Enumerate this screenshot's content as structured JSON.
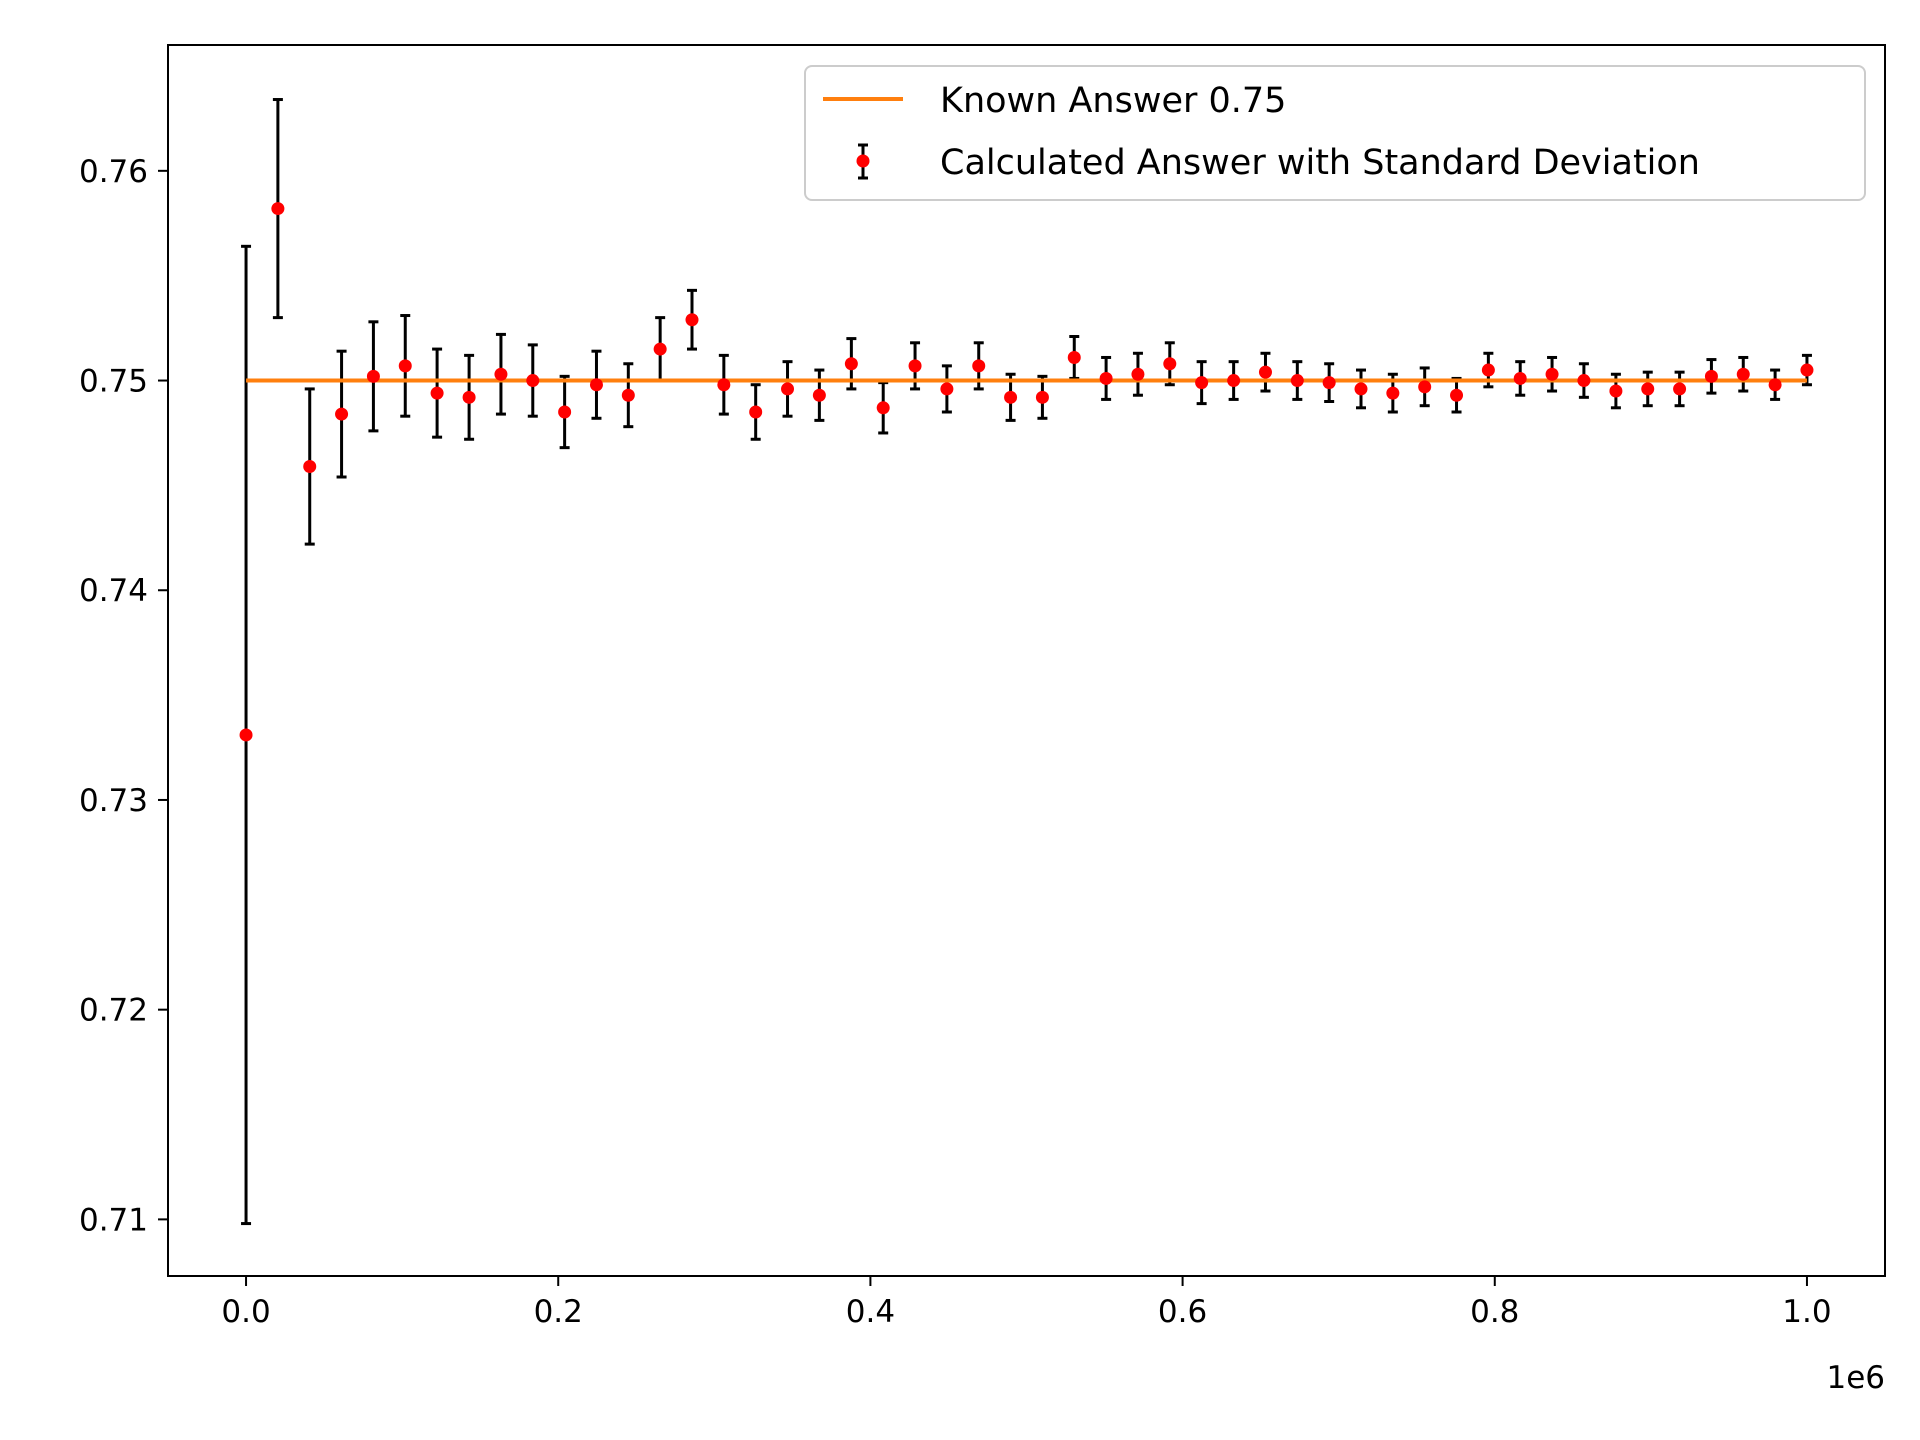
{
  "chart_data": {
    "type": "scatter",
    "x_offset_label": "1e6",
    "xlim": [
      -0.05,
      1.05
    ],
    "ylim": [
      0.7073,
      0.766
    ],
    "x_ticks": [
      {
        "value": 0.0,
        "label": "0.0"
      },
      {
        "value": 0.2,
        "label": "0.2"
      },
      {
        "value": 0.4,
        "label": "0.4"
      },
      {
        "value": 0.6,
        "label": "0.6"
      },
      {
        "value": 0.8,
        "label": "0.8"
      },
      {
        "value": 1.0,
        "label": "1.0"
      }
    ],
    "y_ticks": [
      {
        "value": 0.71,
        "label": "0.71"
      },
      {
        "value": 0.72,
        "label": "0.72"
      },
      {
        "value": 0.73,
        "label": "0.73"
      },
      {
        "value": 0.74,
        "label": "0.74"
      },
      {
        "value": 0.75,
        "label": "0.75"
      },
      {
        "value": 0.76,
        "label": "0.76"
      }
    ],
    "grid": false,
    "legend_position": "top-right",
    "reference_line": {
      "name": "Known Answer 0.75",
      "y": 0.75,
      "x_range": [
        0.0,
        1.0
      ],
      "color": "#ff7f0e"
    },
    "series": [
      {
        "name": "Calculated Answer with Standard Deviation",
        "marker_color": "#ff0000",
        "errorbar_color": "#000000",
        "x": [
          0.0,
          0.0204,
          0.0408,
          0.0612,
          0.0816,
          0.102,
          0.1224,
          0.1429,
          0.1633,
          0.1837,
          0.2041,
          0.2245,
          0.2449,
          0.2653,
          0.2857,
          0.3061,
          0.3265,
          0.3469,
          0.3673,
          0.3878,
          0.4082,
          0.4286,
          0.449,
          0.4694,
          0.4898,
          0.5102,
          0.5306,
          0.551,
          0.5714,
          0.5918,
          0.6122,
          0.6327,
          0.6531,
          0.6735,
          0.6939,
          0.7143,
          0.7347,
          0.7551,
          0.7755,
          0.7959,
          0.8163,
          0.8367,
          0.8571,
          0.8776,
          0.898,
          0.9184,
          0.9388,
          0.9592,
          0.9796,
          1.0
        ],
        "y": [
          0.7331,
          0.7582,
          0.7459,
          0.7484,
          0.7502,
          0.7507,
          0.7494,
          0.7492,
          0.7503,
          0.75,
          0.7485,
          0.7498,
          0.7493,
          0.7515,
          0.7529,
          0.7498,
          0.7485,
          0.7496,
          0.7493,
          0.7508,
          0.7487,
          0.7507,
          0.7496,
          0.7507,
          0.7492,
          0.7492,
          0.7511,
          0.7501,
          0.7503,
          0.7508,
          0.7499,
          0.75,
          0.7504,
          0.75,
          0.7499,
          0.7496,
          0.7494,
          0.7497,
          0.7493,
          0.7505,
          0.7501,
          0.7503,
          0.75,
          0.7495,
          0.7496,
          0.7496,
          0.7502,
          0.7503,
          0.7498,
          0.7505
        ],
        "err": [
          0.0233,
          0.0052,
          0.0037,
          0.003,
          0.0026,
          0.0024,
          0.0021,
          0.002,
          0.0019,
          0.0017,
          0.0017,
          0.0016,
          0.0015,
          0.0015,
          0.0014,
          0.0014,
          0.0013,
          0.0013,
          0.0012,
          0.0012,
          0.0012,
          0.0011,
          0.0011,
          0.0011,
          0.0011,
          0.001,
          0.001,
          0.001,
          0.001,
          0.001,
          0.001,
          0.0009,
          0.0009,
          0.0009,
          0.0009,
          0.0009,
          0.0009,
          0.0009,
          0.0008,
          0.0008,
          0.0008,
          0.0008,
          0.0008,
          0.0008,
          0.0008,
          0.0008,
          0.0008,
          0.0008,
          0.0007,
          0.0007
        ]
      }
    ]
  }
}
